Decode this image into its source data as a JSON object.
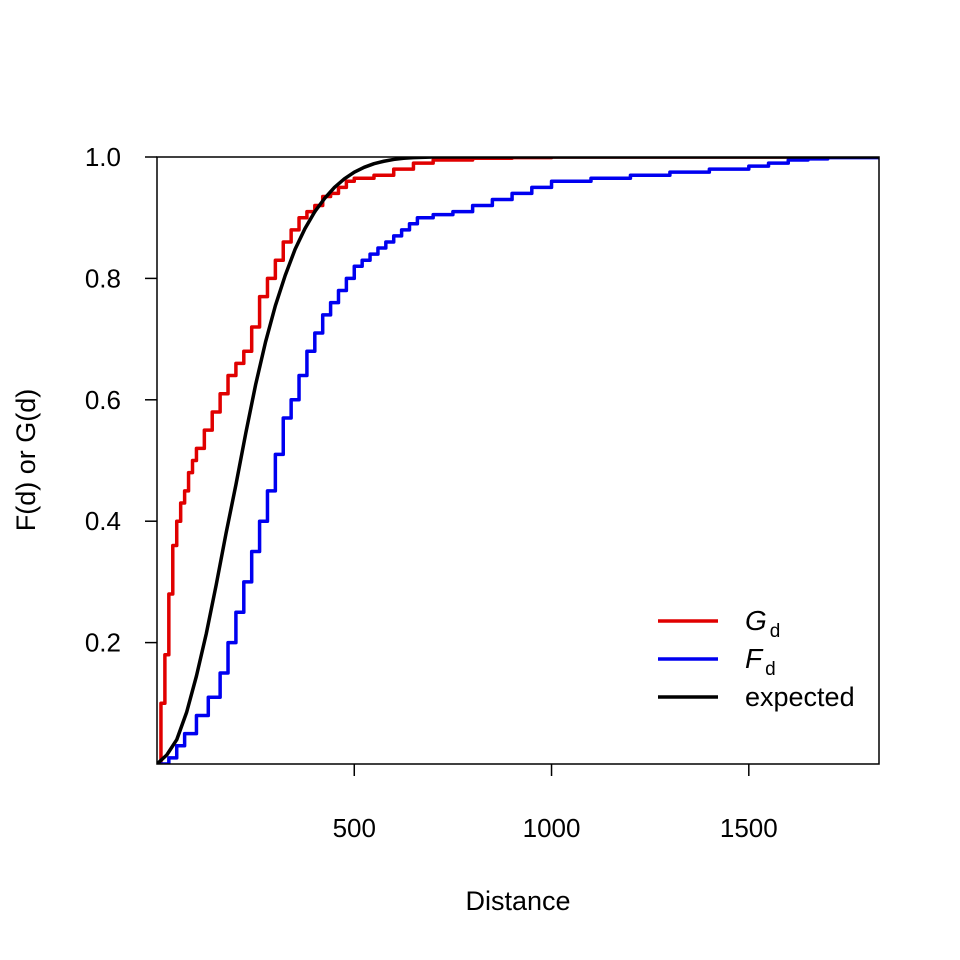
{
  "chart_data": {
    "type": "line",
    "xlabel": "Distance",
    "ylabel": "F(d) or G(d)",
    "xlim": [
      0,
      1830
    ],
    "ylim": [
      0,
      1
    ],
    "x_ticks": [
      500,
      1000,
      1500
    ],
    "y_ticks": [
      0.2,
      0.4,
      0.6,
      0.8,
      1.0
    ],
    "y_tick_labels": [
      "0.2",
      "0.4",
      "0.6",
      "0.8",
      "1.0"
    ],
    "legend_position": "bottom-right",
    "series": [
      {
        "name": "G",
        "subscript": "d",
        "color": "#e00000",
        "step": true,
        "x": [
          0,
          10,
          20,
          30,
          40,
          50,
          60,
          70,
          80,
          90,
          100,
          120,
          140,
          160,
          180,
          200,
          220,
          240,
          260,
          280,
          300,
          320,
          340,
          360,
          380,
          400,
          420,
          440,
          460,
          480,
          500,
          550,
          600,
          650,
          700,
          800,
          900,
          1000,
          1200,
          1830
        ],
        "y": [
          0,
          0.1,
          0.18,
          0.28,
          0.36,
          0.4,
          0.43,
          0.45,
          0.48,
          0.5,
          0.52,
          0.55,
          0.58,
          0.61,
          0.64,
          0.66,
          0.68,
          0.72,
          0.77,
          0.8,
          0.83,
          0.86,
          0.88,
          0.9,
          0.91,
          0.92,
          0.935,
          0.94,
          0.95,
          0.96,
          0.965,
          0.97,
          0.98,
          0.99,
          0.995,
          0.998,
          0.999,
          1.0,
          1.0,
          1.0
        ]
      },
      {
        "name": "F",
        "subscript": "d",
        "color": "#0000f0",
        "step": true,
        "x": [
          0,
          30,
          50,
          70,
          100,
          130,
          160,
          180,
          200,
          220,
          240,
          260,
          280,
          300,
          320,
          340,
          360,
          380,
          400,
          420,
          440,
          460,
          480,
          500,
          520,
          540,
          560,
          580,
          600,
          620,
          640,
          660,
          700,
          750,
          800,
          850,
          900,
          950,
          1000,
          1100,
          1200,
          1300,
          1400,
          1500,
          1550,
          1600,
          1650,
          1700,
          1830
        ],
        "y": [
          0,
          0.01,
          0.03,
          0.05,
          0.08,
          0.11,
          0.15,
          0.2,
          0.25,
          0.3,
          0.35,
          0.4,
          0.45,
          0.51,
          0.57,
          0.6,
          0.64,
          0.68,
          0.71,
          0.74,
          0.76,
          0.78,
          0.8,
          0.82,
          0.83,
          0.84,
          0.85,
          0.86,
          0.87,
          0.88,
          0.89,
          0.9,
          0.905,
          0.91,
          0.92,
          0.93,
          0.94,
          0.95,
          0.96,
          0.965,
          0.97,
          0.975,
          0.98,
          0.985,
          0.99,
          0.995,
          0.997,
          0.999,
          1.0
        ]
      },
      {
        "name": "expected",
        "color": "#000000",
        "step": false,
        "x": [
          0,
          25,
          50,
          75,
          100,
          125,
          150,
          175,
          200,
          225,
          250,
          275,
          300,
          325,
          350,
          375,
          400,
          425,
          450,
          475,
          500,
          525,
          550,
          575,
          600,
          625,
          650,
          700,
          800,
          1000,
          1500,
          1830
        ],
        "y": [
          0,
          0.015,
          0.04,
          0.085,
          0.145,
          0.215,
          0.295,
          0.38,
          0.46,
          0.545,
          0.625,
          0.695,
          0.755,
          0.805,
          0.848,
          0.882,
          0.91,
          0.932,
          0.95,
          0.964,
          0.975,
          0.983,
          0.989,
          0.993,
          0.996,
          0.998,
          0.999,
          1.0,
          1.0,
          1.0,
          1.0,
          1.0
        ]
      }
    ]
  }
}
